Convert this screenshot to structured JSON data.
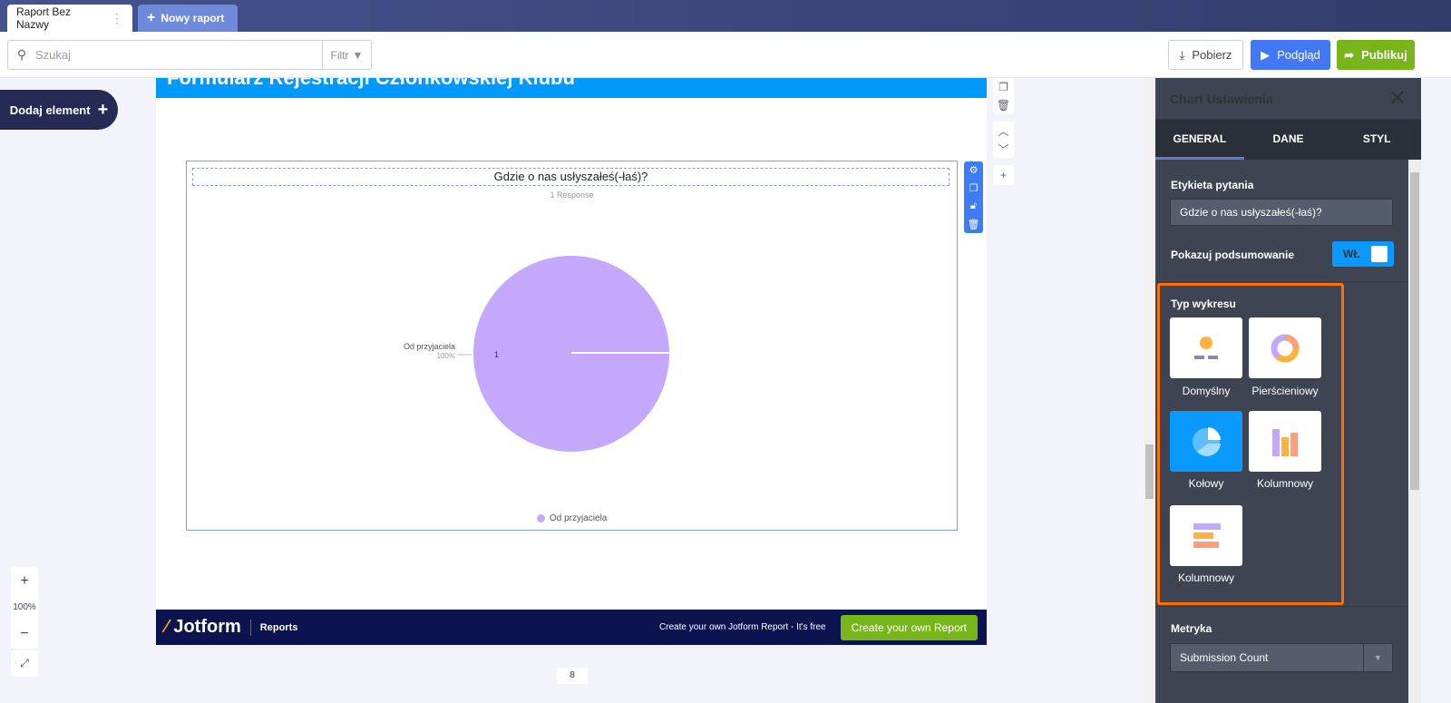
{
  "tabs": [
    {
      "label": "Raport Bez Nazwy",
      "menu_icon": "vertical-dots-icon"
    },
    {
      "label": "Nowy raport",
      "icon": "plus-icon"
    }
  ],
  "toolbar": {
    "search_placeholder": "Szukaj",
    "filter_label": "Filtr",
    "download_label": "Pobierz",
    "preview_label": "Podgląd",
    "publish_label": "Publikuj"
  },
  "left": {
    "add_element_label": "Dodaj element",
    "zoom_level": "100%"
  },
  "report": {
    "form_title": "Formularz Rejestracji Członkowskiej Klubu",
    "page_number": "8"
  },
  "chart": {
    "title": "Gdzie o nas usłyszałeś(-łaś)?",
    "responses": "1 Response",
    "slice_label": "Od przyjaciela",
    "slice_percent": "100%",
    "slice_value": "1",
    "legend": "Od przyjaciela"
  },
  "chart_data": {
    "type": "pie",
    "title": "Gdzie o nas usłyszałeś(-łaś)?",
    "categories": [
      "Od przyjaciela"
    ],
    "values": [
      1
    ],
    "percentages": [
      100
    ],
    "colors": [
      "#c4a8fc"
    ],
    "legend": "bottom"
  },
  "footer": {
    "brand": "Jotform",
    "product": "Reports",
    "cta_text": "Create your own Jotform Report - It's free",
    "cta_button": "Create your own Report"
  },
  "panel": {
    "title": "Chart Ustawienia",
    "tabs": [
      "GENERAL",
      "DANE",
      "STYL"
    ],
    "active_tab": "GENERAL",
    "question_label_title": "Etykieta pytania",
    "question_label_value": "Gdzie o nas usłyszałeś(-łaś)?",
    "summary_title": "Pokazuj podsumowanie",
    "summary_toggle": "WŁ",
    "chart_type_title": "Typ wykresu",
    "chart_types": [
      {
        "label": "Domyślny"
      },
      {
        "label": "Pierścieniowy"
      },
      {
        "label": "Kołowy",
        "selected": true
      },
      {
        "label": "Kolumnowy"
      },
      {
        "label": "Kolumnowy"
      }
    ],
    "metric_title": "Metryka",
    "metric_value": "Submission Count"
  },
  "colors": {
    "accent": "#0099ff",
    "publish": "#78b51a",
    "preview": "#4277f6",
    "highlight": "#ff6f00",
    "slice": "#c4a8fc"
  }
}
